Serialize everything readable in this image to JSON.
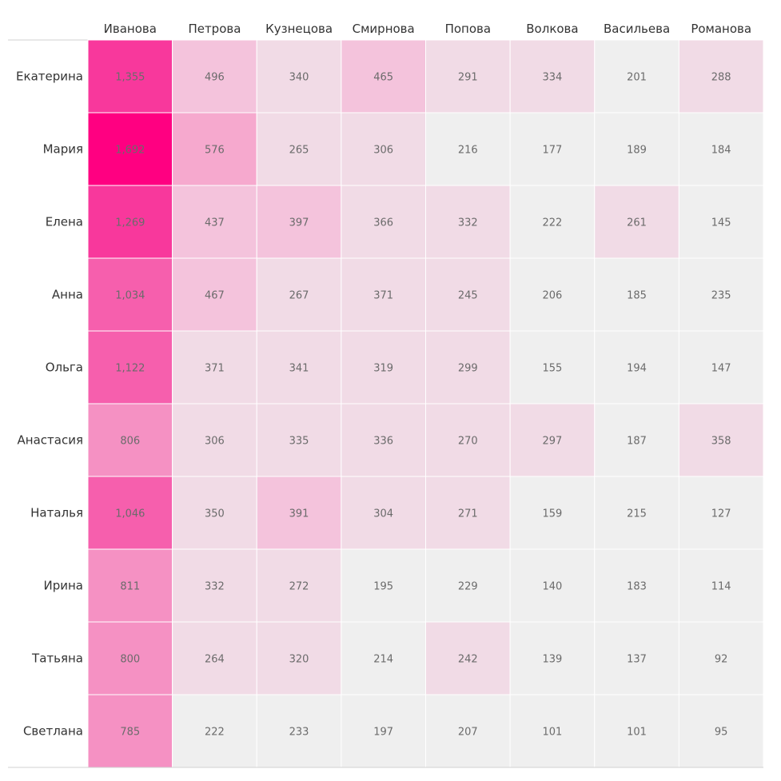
{
  "chart_data": {
    "type": "heatmap",
    "title": "",
    "xlabel": "",
    "ylabel": "",
    "columns": [
      "Иванова",
      "Петрова",
      "Кузнецова",
      "Смирнова",
      "Попова",
      "Волкова",
      "Васильева",
      "Романова"
    ],
    "rows": [
      "Екатерина",
      "Мария",
      "Елена",
      "Анна",
      "Ольга",
      "Анастасия",
      "Наталья",
      "Ирина",
      "Татьяна",
      "Светлана"
    ],
    "values": [
      [
        1355,
        496,
        340,
        465,
        291,
        334,
        201,
        288
      ],
      [
        1692,
        576,
        265,
        306,
        216,
        177,
        189,
        184
      ],
      [
        1269,
        437,
        397,
        366,
        332,
        222,
        261,
        145
      ],
      [
        1034,
        467,
        267,
        371,
        245,
        206,
        185,
        235
      ],
      [
        1122,
        371,
        341,
        319,
        299,
        155,
        194,
        147
      ],
      [
        806,
        306,
        335,
        336,
        270,
        297,
        187,
        358
      ],
      [
        1046,
        350,
        391,
        304,
        271,
        159,
        215,
        127
      ],
      [
        811,
        332,
        272,
        195,
        229,
        140,
        183,
        114
      ],
      [
        800,
        264,
        320,
        214,
        242,
        139,
        137,
        92
      ],
      [
        785,
        222,
        233,
        197,
        207,
        101,
        101,
        95
      ]
    ],
    "value_labels": [
      [
        "1,355",
        "496",
        "340",
        "465",
        "291",
        "334",
        "201",
        "288"
      ],
      [
        "1,692",
        "576",
        "265",
        "306",
        "216",
        "177",
        "189",
        "184"
      ],
      [
        "1,269",
        "437",
        "397",
        "366",
        "332",
        "222",
        "261",
        "145"
      ],
      [
        "1,034",
        "467",
        "267",
        "371",
        "245",
        "206",
        "185",
        "235"
      ],
      [
        "1,122",
        "371",
        "341",
        "319",
        "299",
        "155",
        "194",
        "147"
      ],
      [
        "806",
        "306",
        "335",
        "336",
        "270",
        "297",
        "187",
        "358"
      ],
      [
        "1,046",
        "350",
        "391",
        "304",
        "271",
        "159",
        "215",
        "127"
      ],
      [
        "811",
        "332",
        "272",
        "195",
        "229",
        "140",
        "183",
        "114"
      ],
      [
        "800",
        "264",
        "320",
        "214",
        "242",
        "139",
        "137",
        "92"
      ],
      [
        "785",
        "222",
        "233",
        "197",
        "207",
        "101",
        "101",
        "95"
      ]
    ],
    "color_steps": [
      {
        "min": 0,
        "color": "#efefef"
      },
      {
        "min": 240,
        "color": "#f1dbe6"
      },
      {
        "min": 380,
        "color": "#f4c3dc"
      },
      {
        "min": 550,
        "color": "#f6a9ce"
      },
      {
        "min": 780,
        "color": "#f591c3"
      },
      {
        "min": 1000,
        "color": "#f65fad"
      },
      {
        "min": 1200,
        "color": "#f8389c"
      },
      {
        "min": 1600,
        "color": "#ff0081"
      }
    ],
    "grid": true,
    "legend": "none"
  }
}
